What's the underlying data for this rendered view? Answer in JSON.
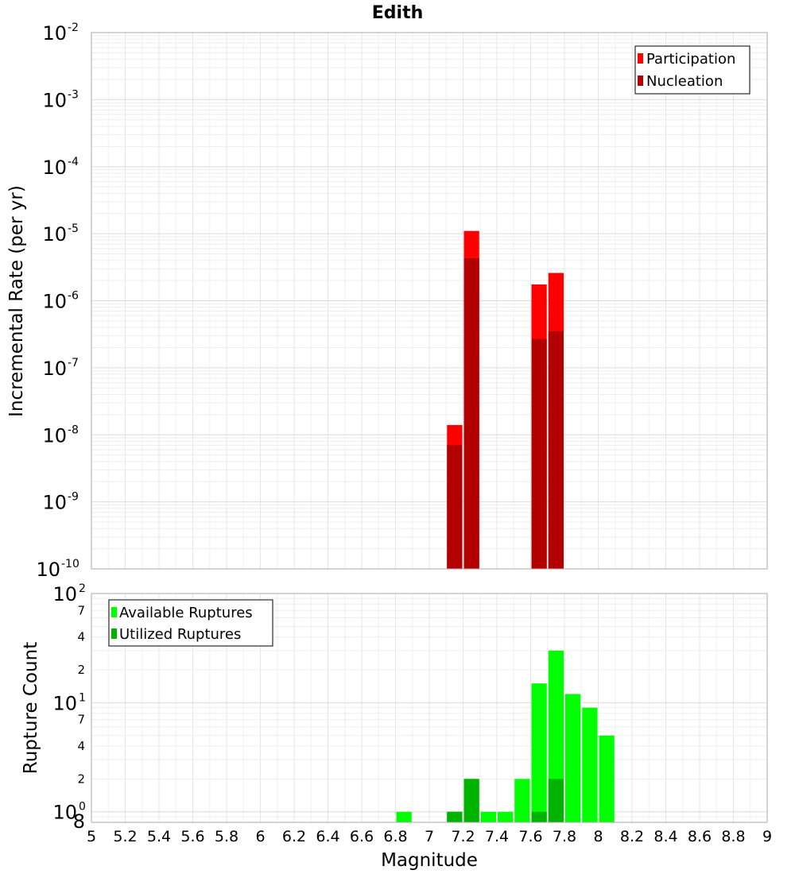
{
  "chart_data": [
    {
      "type": "bar",
      "title": "Edith",
      "ylabel": "Incremental Rate (per yr)",
      "yscale": "log",
      "ylim": [
        1e-10,
        0.01
      ],
      "xlim": [
        5,
        9
      ],
      "grid": true,
      "legend_position": "top-right",
      "y_tick_labels": [
        {
          "base": "10",
          "exp": "-2"
        },
        {
          "base": "10",
          "exp": "-3"
        },
        {
          "base": "10",
          "exp": "-4"
        },
        {
          "base": "10",
          "exp": "-5"
        },
        {
          "base": "10",
          "exp": "-6"
        },
        {
          "base": "10",
          "exp": "-7"
        },
        {
          "base": "10",
          "exp": "-8"
        },
        {
          "base": "10",
          "exp": "-9"
        },
        {
          "base": "10",
          "exp": "-10"
        }
      ],
      "series": [
        {
          "name": "Participation",
          "color": "#ff0000",
          "x": [
            7.15,
            7.25,
            7.65,
            7.75
          ],
          "values": [
            1.4e-08,
            1.1e-05,
            1.75e-06,
            2.6e-06
          ]
        },
        {
          "name": "Nucleation",
          "color": "#b30000",
          "x": [
            7.15,
            7.25,
            7.65,
            7.75
          ],
          "values": [
            7e-09,
            4.3e-06,
            2.7e-07,
            3.5e-07
          ]
        }
      ]
    },
    {
      "type": "bar",
      "ylabel": "Rupture Count",
      "xlabel": "Magnitude",
      "yscale": "log",
      "ylim": [
        0.8,
        100
      ],
      "xlim": [
        5,
        9
      ],
      "grid": true,
      "legend_position": "top-left",
      "x_tick_labels": [
        "5",
        "5.2",
        "5.4",
        "5.6",
        "5.8",
        "6",
        "6.2",
        "6.4",
        "6.6",
        "6.8",
        "7",
        "7.2",
        "7.4",
        "7.6",
        "7.8",
        "8",
        "8.2",
        "8.4",
        "8.6",
        "8.8",
        "9"
      ],
      "y_major_labels": [
        {
          "base": "10",
          "exp": "2"
        },
        {
          "base": "10",
          "exp": "1"
        },
        {
          "base": "10",
          "exp": "0"
        }
      ],
      "y_minor_labels": [
        "7",
        "4",
        "2",
        "7",
        "4",
        "2",
        "8"
      ],
      "series": [
        {
          "name": "Available Ruptures",
          "color": "#00ff00",
          "x": [
            6.85,
            7.15,
            7.25,
            7.35,
            7.45,
            7.55,
            7.65,
            7.75,
            7.85,
            7.95,
            8.05
          ],
          "values": [
            1,
            1,
            2,
            1,
            1,
            2,
            15,
            30,
            12,
            9,
            5
          ]
        },
        {
          "name": "Utilized Ruptures",
          "color": "#00b300",
          "x": [
            7.15,
            7.25,
            7.65,
            7.75
          ],
          "values": [
            1,
            2,
            1,
            2
          ]
        }
      ]
    }
  ]
}
